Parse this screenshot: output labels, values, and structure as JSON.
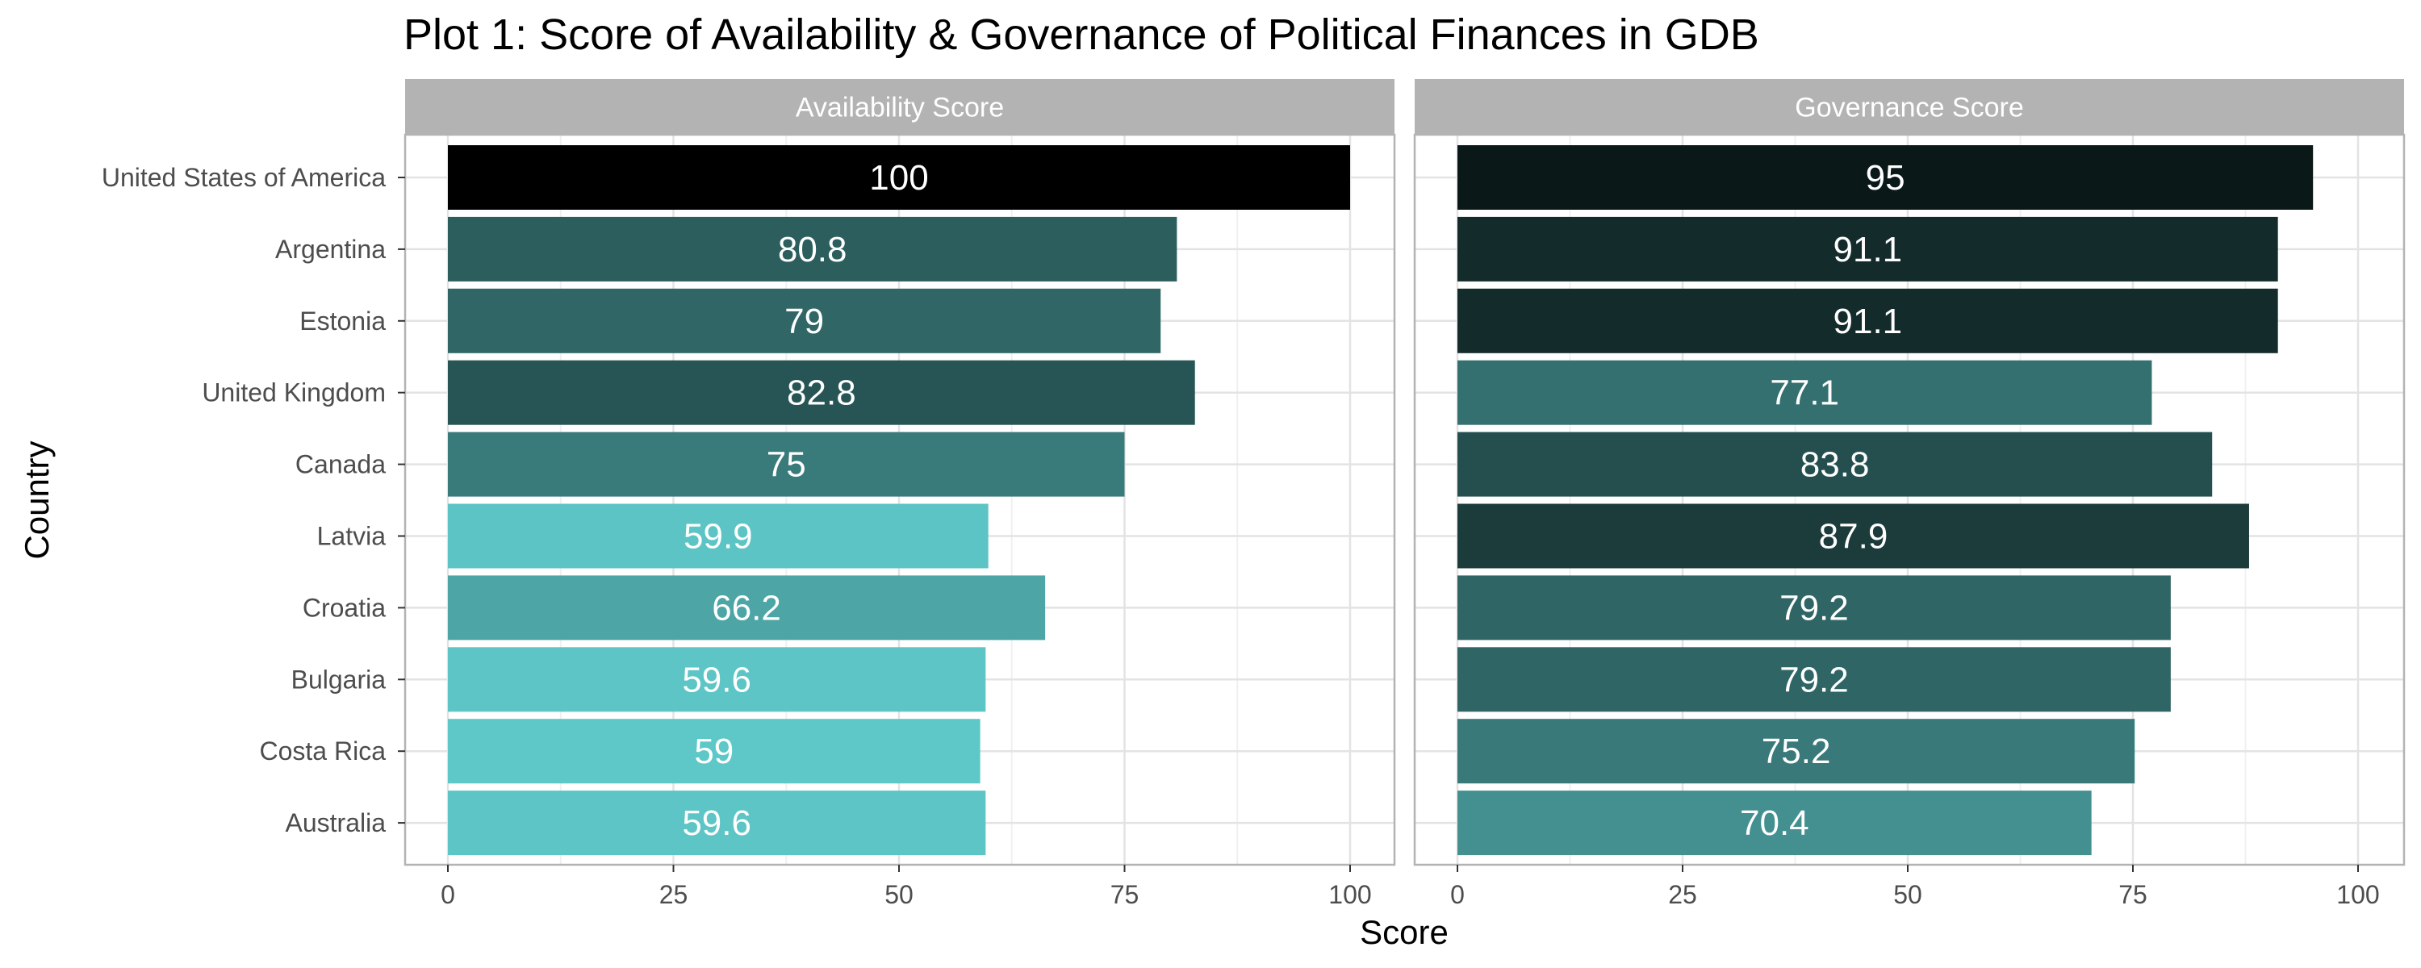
{
  "chart_data": {
    "type": "bar",
    "orientation": "horizontal",
    "title": "Plot 1: Score of Availability & Governance of Political Finances in GDB",
    "xlabel": "Score",
    "ylabel": "Country",
    "categories": [
      "United States of America",
      "Argentina",
      "Estonia",
      "United Kingdom",
      "Canada",
      "Latvia",
      "Croatia",
      "Bulgaria",
      "Costa Rica",
      "Australia"
    ],
    "xlim": [
      0,
      100
    ],
    "xticks": [
      "0",
      "25",
      "50",
      "75",
      "100"
    ],
    "grid": true,
    "legend": "none",
    "panels": [
      {
        "name": "Availability Score",
        "values": [
          100,
          80.8,
          79,
          82.8,
          75,
          59.9,
          66.2,
          59.6,
          59,
          59.6
        ],
        "labels": [
          "100",
          "80.8",
          "79",
          "82.8",
          "75",
          "59.9",
          "66.2",
          "59.6",
          "59",
          "59.6"
        ]
      },
      {
        "name": "Governance Score",
        "values": [
          95,
          91.1,
          91.1,
          77.1,
          83.8,
          87.9,
          79.2,
          79.2,
          75.2,
          70.4
        ],
        "labels": [
          "95",
          "91.1",
          "91.1",
          "77.1",
          "83.8",
          "87.9",
          "79.2",
          "79.2",
          "75.2",
          "70.4"
        ]
      }
    ],
    "colors": {
      "high": "#000000",
      "low": "#5ec8c8",
      "strip": "#b3b3b3",
      "strip_text": "#ffffff",
      "grid": "#e3e3e3",
      "panel_border": "#b3b3b3",
      "bar_label": "#ffffff"
    }
  }
}
